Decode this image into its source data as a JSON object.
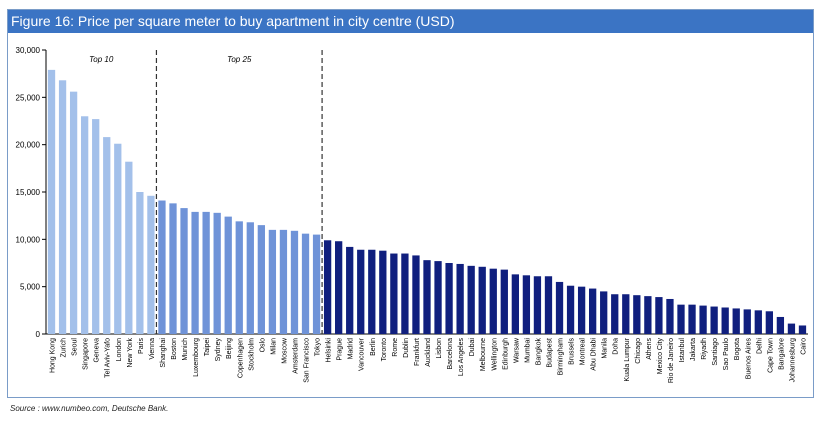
{
  "colors": {
    "title_bar": "#3b74c4",
    "top10": "#a3c0ea",
    "top25": "#6f93d8",
    "rest": "#101f7e",
    "divider": "#333333"
  },
  "title": "Figure 16: Price per square meter to buy apartment in city centre (USD)",
  "source": "Source : www.numbeo.com, Deutsche Bank.",
  "chart_data": {
    "type": "bar",
    "title": "Figure 16: Price per square meter to buy apartment in city centre (USD)",
    "xlabel": "",
    "ylabel": "",
    "ylim": [
      0,
      30000
    ],
    "yticks": [
      0,
      5000,
      10000,
      15000,
      20000,
      25000,
      30000
    ],
    "ytick_labels": [
      "0",
      "5,000",
      "10,000",
      "15,000",
      "20,000",
      "25,000",
      "30,000"
    ],
    "grid": false,
    "categories": [
      "Hong Kong",
      "Zurich",
      "Seoul",
      "Singapore",
      "Geneva",
      "Tel Aviv-Yafo",
      "London",
      "New York",
      "Paris",
      "Vienna",
      "Shanghai",
      "Boston",
      "Munich",
      "Luxembourg",
      "Taipei",
      "Sydney",
      "Beijing",
      "Copenhagen",
      "Stockholm",
      "Oslo",
      "Milan",
      "Moscow",
      "Amsterdam",
      "San Francisco",
      "Tokyo",
      "Helsinki",
      "Prague",
      "Madrid",
      "Vancouver",
      "Berlin",
      "Toronto",
      "Rome",
      "Dublin",
      "Frankfurt",
      "Auckland",
      "Lisbon",
      "Barcelona",
      "Los Angeles",
      "Dubai",
      "Melbourne",
      "Wellington",
      "Edinburgh",
      "Warsaw",
      "Mumbai",
      "Bangkok",
      "Budapest",
      "Birmingham",
      "Brussels",
      "Montreal",
      "Abu Dhabi",
      "Manila",
      "Doha",
      "Kuala Lumpur",
      "Chicago",
      "Athens",
      "Mexico City",
      "Rio de Janeiro",
      "Istanbul",
      "Jakarta",
      "Riyadh",
      "Santiago",
      "Sao Paulo",
      "Bogota",
      "Buenos Aires",
      "Delhi",
      "Cape Town",
      "Bangalore",
      "Johannesburg",
      "Cairo"
    ],
    "values": [
      27900,
      26800,
      25600,
      23000,
      22700,
      20800,
      20100,
      18200,
      15000,
      14600,
      14100,
      13800,
      13300,
      12900,
      12900,
      12800,
      12400,
      11900,
      11800,
      11500,
      11000,
      11000,
      10900,
      10600,
      10500,
      9900,
      9800,
      9200,
      8900,
      8900,
      8800,
      8500,
      8500,
      8300,
      7800,
      7700,
      7500,
      7400,
      7200,
      7100,
      6900,
      6800,
      6300,
      6200,
      6100,
      6100,
      5500,
      5100,
      5000,
      4800,
      4500,
      4200,
      4200,
      4100,
      4000,
      3900,
      3700,
      3100,
      3100,
      3000,
      2900,
      2800,
      2700,
      2600,
      2500,
      2400,
      1800,
      1100,
      900
    ],
    "groups": [
      {
        "label": "Top 10",
        "count": 10,
        "color": "#a3c0ea"
      },
      {
        "label": "Top 25",
        "count": 15,
        "color": "#6f93d8"
      },
      {
        "label": "",
        "count": 44,
        "color": "#101f7e"
      }
    ]
  }
}
